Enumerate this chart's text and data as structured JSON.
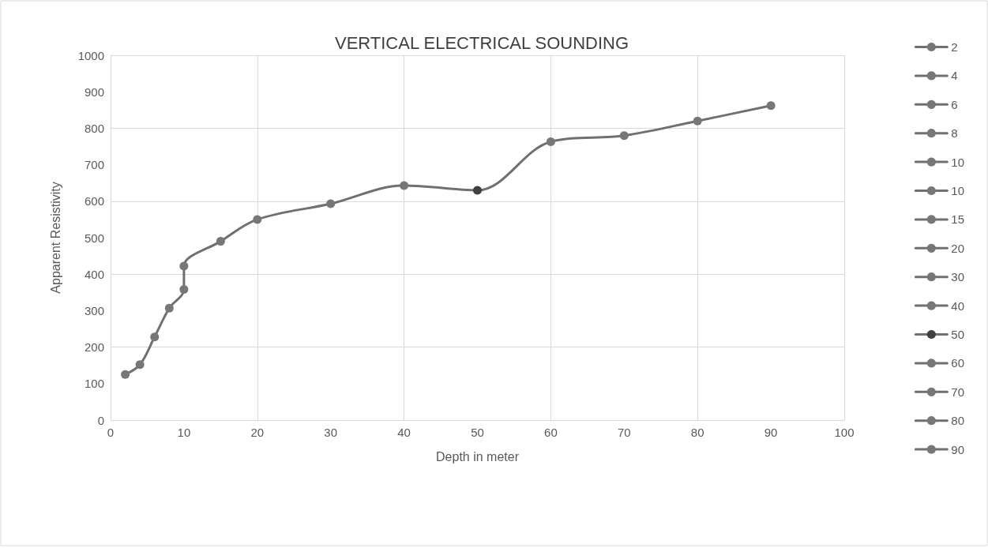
{
  "chart_data": {
    "type": "line",
    "title": "VERTICAL ELECTRICAL SOUNDING",
    "xlabel": "Depth in meter",
    "ylabel": "Apparent Resistivity",
    "series": [
      {
        "color": "#707070",
        "marker": "none",
        "x": [
          2,
          4,
          6,
          8,
          10,
          10,
          15,
          20,
          30,
          40,
          50,
          60,
          70,
          80,
          90
        ],
        "values": [
          125,
          152,
          228,
          307,
          358,
          422,
          490,
          550,
          593,
          643,
          630,
          763,
          780,
          820,
          862
        ]
      },
      {
        "name": "2",
        "color": "#777777",
        "x": [
          2
        ],
        "values": [
          125
        ]
      },
      {
        "name": "4",
        "color": "#777777",
        "x": [
          4
        ],
        "values": [
          152
        ]
      },
      {
        "name": "6",
        "color": "#777777",
        "x": [
          6
        ],
        "values": [
          228
        ]
      },
      {
        "name": "8",
        "color": "#777777",
        "x": [
          8
        ],
        "values": [
          307
        ]
      },
      {
        "name": "10",
        "color": "#777777",
        "x": [
          10
        ],
        "values": [
          358
        ]
      },
      {
        "name": "10",
        "color": "#777777",
        "x": [
          10
        ],
        "values": [
          422
        ]
      },
      {
        "name": "15",
        "color": "#777777",
        "x": [
          15
        ],
        "values": [
          490
        ]
      },
      {
        "name": "20",
        "color": "#777777",
        "x": [
          20
        ],
        "values": [
          550
        ]
      },
      {
        "name": "30",
        "color": "#777777",
        "x": [
          30
        ],
        "values": [
          593
        ]
      },
      {
        "name": "40",
        "color": "#777777",
        "x": [
          40
        ],
        "values": [
          643
        ]
      },
      {
        "name": "50",
        "color": "#404040",
        "x": [
          50
        ],
        "values": [
          630
        ]
      },
      {
        "name": "60",
        "color": "#777777",
        "x": [
          60
        ],
        "values": [
          763
        ]
      },
      {
        "name": "70",
        "color": "#777777",
        "x": [
          70
        ],
        "values": [
          780
        ]
      },
      {
        "name": "80",
        "color": "#777777",
        "x": [
          80
        ],
        "values": [
          820
        ]
      },
      {
        "name": "90",
        "color": "#777777",
        "x": [
          90
        ],
        "values": [
          862
        ]
      }
    ],
    "xlim": [
      0,
      100
    ],
    "ylim": [
      0,
      1000
    ],
    "xticks": [
      0,
      10,
      20,
      30,
      40,
      50,
      60,
      70,
      80,
      90,
      100
    ],
    "yticks": [
      0,
      100,
      200,
      300,
      400,
      500,
      600,
      700,
      800,
      900,
      1000
    ],
    "grid": true,
    "legend": "right",
    "marker": "circle",
    "line_style": "solid"
  }
}
